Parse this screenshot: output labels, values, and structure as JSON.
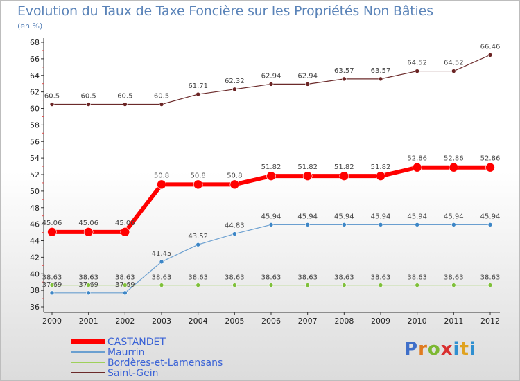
{
  "chart_data": {
    "type": "line",
    "title": "Evolution du Taux de Taxe Foncière sur les Propriétés Non Bâties",
    "subtitle": "(en %)",
    "categories": [
      "2000",
      "2001",
      "2002",
      "2003",
      "2004",
      "2005",
      "2006",
      "2007",
      "2008",
      "2009",
      "2010",
      "2011",
      "2012"
    ],
    "ylim": [
      36,
      68
    ],
    "yticks": [
      36,
      38,
      40,
      42,
      44,
      46,
      48,
      50,
      52,
      54,
      56,
      58,
      60,
      62,
      64,
      66,
      68
    ],
    "grid": false,
    "legend_position": "bottom-left",
    "series": [
      {
        "name": "Saint-Gein",
        "color": "#6b2a2a",
        "values": [
          60.5,
          60.5,
          60.5,
          60.5,
          61.71,
          62.32,
          62.94,
          62.94,
          63.57,
          63.57,
          64.52,
          64.52,
          66.46
        ],
        "labels": [
          "60.5",
          "60.5",
          "60.5",
          "60.5",
          "61.71",
          "62.32",
          "62.94",
          "62.94",
          "63.57",
          "63.57",
          "64.52",
          "64.52",
          "66.46"
        ]
      },
      {
        "name": "CASTANDET",
        "color": "#ff0000",
        "values": [
          45.06,
          45.06,
          45.06,
          50.8,
          50.8,
          50.8,
          51.82,
          51.82,
          51.82,
          51.82,
          52.86,
          52.86,
          52.86
        ],
        "labels": [
          "45.06",
          "45.06",
          "45.06",
          "50.8",
          "50.8",
          "50.8",
          "51.82",
          "51.82",
          "51.82",
          "51.82",
          "52.86",
          "52.86",
          "52.86"
        ]
      },
      {
        "name": "Maurrin",
        "color": "#6a9fd0",
        "values": [
          37.69,
          37.69,
          37.69,
          41.45,
          43.52,
          44.83,
          45.94,
          45.94,
          45.94,
          45.94,
          45.94,
          45.94,
          45.94
        ],
        "labels": [
          "37.69",
          "37.69",
          "37.69",
          "41.45",
          "43.52",
          "44.83",
          "45.94",
          "45.94",
          "45.94",
          "45.94",
          "45.94",
          "45.94",
          "45.94"
        ]
      },
      {
        "name": "Bordères-et-Lamensans",
        "color": "#9ed05a",
        "values": [
          38.63,
          38.63,
          38.63,
          38.63,
          38.63,
          38.63,
          38.63,
          38.63,
          38.63,
          38.63,
          38.63,
          38.63,
          38.63
        ],
        "labels": [
          "38.63",
          "38.63",
          "38.63",
          "38.63",
          "38.63",
          "38.63",
          "38.63",
          "38.63",
          "38.63",
          "38.63",
          "38.63",
          "38.63",
          "38.63"
        ]
      }
    ],
    "legend": [
      "CASTANDET",
      "Maurrin",
      "Bordères-et-Lamensans",
      "Saint-Gein"
    ]
  },
  "logo": {
    "text": "Proxiti"
  }
}
